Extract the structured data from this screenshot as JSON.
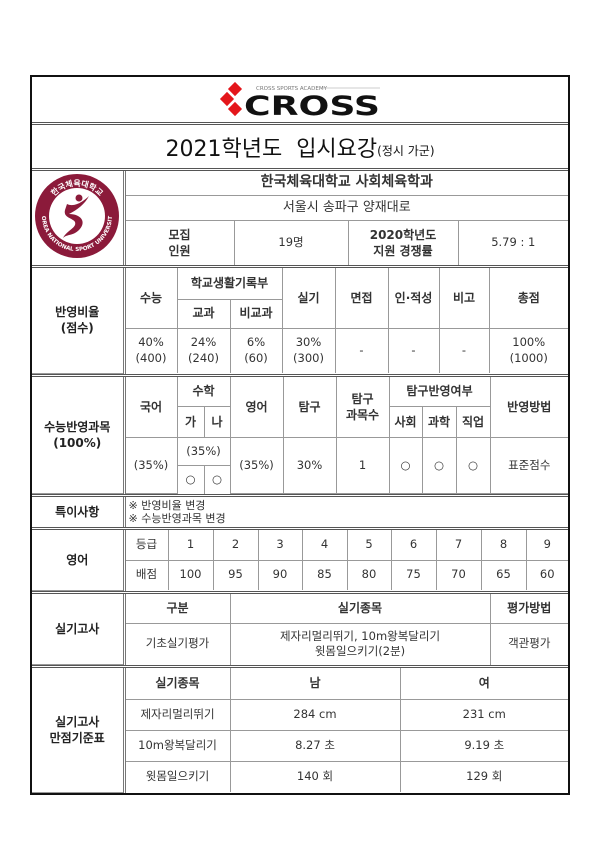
{
  "brand": {
    "name": "CROSS",
    "tagline": "CROSS SPORTS ACADEMY",
    "color_red": "#e4161b",
    "color_black": "#111111"
  },
  "title": {
    "main": "2021학년도  입시요강",
    "sub": "(정시 가군)"
  },
  "university": {
    "name": "한국체육대학교 사회체육학과",
    "address": "서울시 송파구 양재대로",
    "seal": {
      "ring_text_top": "한국체육대학교",
      "ring_text_bottom": "KOREA NATIONAL SPORT UNIVERSITY",
      "color": "#8b1a3a"
    },
    "recruit_label": "모집\n인원",
    "recruit_value": "19명",
    "competition_label": "2020학년도\n지원 경쟁률",
    "competition_value": "5.79 : 1"
  },
  "ratio": {
    "label": "반영비율\n(점수)",
    "headers": {
      "suneung": "수능",
      "record": "학교생활기록부",
      "subject": "교과",
      "nonsubject": "비교과",
      "practical": "실기",
      "interview": "면접",
      "aptitude": "인·적성",
      "etc": "비고",
      "total": "총점"
    },
    "values": {
      "suneung": "40%\n(400)",
      "subject": "24%\n(240)",
      "nonsubject": "6%\n(60)",
      "practical": "30%\n(300)",
      "interview": "-",
      "aptitude": "-",
      "etc": "-",
      "total": "100%\n(1000)"
    }
  },
  "subjects": {
    "label": "수능반영과목\n(100%)",
    "headers": {
      "korean": "국어",
      "math": "수학",
      "math_ga": "가",
      "math_na": "나",
      "english": "영어",
      "inquiry": "탐구",
      "inquiry_count": "탐구\n과목수",
      "inquiry_reflect": "탐구반영여부",
      "social": "사회",
      "science": "과학",
      "vocational": "직업",
      "method": "반영방법"
    },
    "values": {
      "korean": "(35%)",
      "math": "(35%)",
      "math_ga": "○",
      "math_na": "○",
      "english": "(35%)",
      "inquiry": "30%",
      "inquiry_count": "1",
      "social": "○",
      "science": "○",
      "vocational": "○",
      "method": "표준점수"
    }
  },
  "notes": {
    "label": "특이사항",
    "lines": [
      "※ 반영비율 변경",
      "※ 수능반영과목 변경"
    ]
  },
  "english": {
    "label": "영어",
    "grade_label": "등급",
    "score_label": "배점",
    "grades": [
      "1",
      "2",
      "3",
      "4",
      "5",
      "6",
      "7",
      "8",
      "9"
    ],
    "scores": [
      "100",
      "95",
      "90",
      "85",
      "80",
      "75",
      "70",
      "65",
      "60"
    ]
  },
  "practical": {
    "label": "실기고사",
    "headers": {
      "category": "구분",
      "events": "실기종목",
      "method": "평가방법"
    },
    "category": "기초실기평가",
    "events": [
      "제자리멀리뛰기, 10m왕복달리기",
      "윗몸일으키기(2분)"
    ],
    "method": "객관평가"
  },
  "perfect": {
    "label": "실기고사\n만점기준표",
    "headers": {
      "event": "실기종목",
      "male": "남",
      "female": "여"
    },
    "rows": [
      {
        "event": "제자리멀리뛰기",
        "male": "284 cm",
        "female": "231 cm"
      },
      {
        "event": "10m왕복달리기",
        "male": "8.27 초",
        "female": "9.19 초"
      },
      {
        "event": "윗몸일으키기",
        "male": "140 회",
        "female": "129 회"
      }
    ]
  }
}
